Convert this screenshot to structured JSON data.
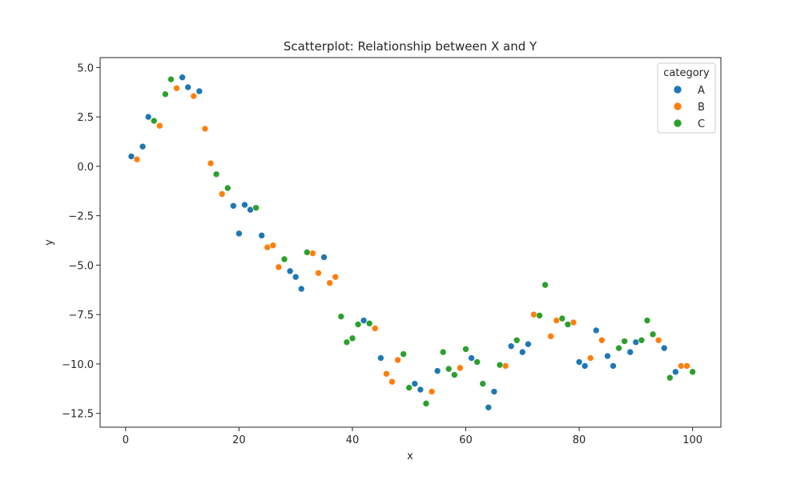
{
  "chart_data": {
    "type": "scatter",
    "title": "Scatterplot: Relationship between X and Y",
    "xlabel": "x",
    "ylabel": "y",
    "xlim": [
      -4.5,
      105
    ],
    "ylim": [
      -13.2,
      5.5
    ],
    "xticks": [
      0,
      20,
      40,
      60,
      80,
      100
    ],
    "xtick_labels": [
      "0",
      "20",
      "40",
      "60",
      "80",
      "100"
    ],
    "yticks": [
      5.0,
      2.5,
      0.0,
      -2.5,
      -5.0,
      -7.5,
      -10.0,
      -12.5
    ],
    "ytick_labels": [
      "5.0",
      "2.5",
      "0.0",
      "−2.5",
      "−5.0",
      "−7.5",
      "−10.0",
      "−12.5"
    ],
    "grid": false,
    "legend": {
      "title": "category",
      "placement": "top-right"
    },
    "series": [
      {
        "name": "A",
        "color": "#1f77b4",
        "points": [
          [
            1,
            0.5
          ],
          [
            3,
            1.0
          ],
          [
            4,
            2.5
          ],
          [
            10,
            4.5
          ],
          [
            11,
            4.0
          ],
          [
            13,
            3.8
          ],
          [
            19,
            -2.0
          ],
          [
            20,
            -3.4
          ],
          [
            21,
            -1.95
          ],
          [
            22,
            -2.2
          ],
          [
            24,
            -3.5
          ],
          [
            29,
            -5.3
          ],
          [
            30,
            -5.6
          ],
          [
            31,
            -6.2
          ],
          [
            35,
            -4.6
          ],
          [
            42,
            -7.8
          ],
          [
            45,
            -9.7
          ],
          [
            51,
            -11.0
          ],
          [
            52,
            -11.3
          ],
          [
            55,
            -10.35
          ],
          [
            61,
            -9.7
          ],
          [
            64,
            -12.2
          ],
          [
            65,
            -11.4
          ],
          [
            68,
            -9.1
          ],
          [
            70,
            -9.4
          ],
          [
            71,
            -9.0
          ],
          [
            80,
            -9.9
          ],
          [
            81,
            -10.1
          ],
          [
            83,
            -8.3
          ],
          [
            85,
            -9.6
          ],
          [
            86,
            -10.1
          ],
          [
            89,
            -9.4
          ],
          [
            90,
            -8.9
          ],
          [
            95,
            -9.2
          ],
          [
            97,
            -10.4
          ]
        ]
      },
      {
        "name": "B",
        "color": "#ff7f0e",
        "points": [
          [
            2,
            0.35
          ],
          [
            6,
            2.05
          ],
          [
            9,
            3.95
          ],
          [
            12,
            3.55
          ],
          [
            14,
            1.9
          ],
          [
            15,
            0.15
          ],
          [
            17,
            -1.4
          ],
          [
            25,
            -4.1
          ],
          [
            26,
            -4.0
          ],
          [
            27,
            -5.1
          ],
          [
            33,
            -4.4
          ],
          [
            34,
            -5.4
          ],
          [
            36,
            -5.9
          ],
          [
            37,
            -5.6
          ],
          [
            44,
            -8.2
          ],
          [
            46,
            -10.5
          ],
          [
            47,
            -10.9
          ],
          [
            48,
            -9.8
          ],
          [
            54,
            -11.4
          ],
          [
            59,
            -10.2
          ],
          [
            67,
            -10.1
          ],
          [
            72,
            -7.5
          ],
          [
            75,
            -8.6
          ],
          [
            76,
            -7.8
          ],
          [
            79,
            -7.9
          ],
          [
            82,
            -9.7
          ],
          [
            84,
            -8.8
          ],
          [
            94,
            -8.8
          ],
          [
            98,
            -10.1
          ],
          [
            99,
            -10.1
          ]
        ]
      },
      {
        "name": "C",
        "color": "#2ca02c",
        "points": [
          [
            5,
            2.3
          ],
          [
            7,
            3.65
          ],
          [
            8,
            4.4
          ],
          [
            16,
            -0.4
          ],
          [
            18,
            -1.1
          ],
          [
            23,
            -2.1
          ],
          [
            28,
            -4.7
          ],
          [
            32,
            -4.35
          ],
          [
            38,
            -7.6
          ],
          [
            39,
            -8.9
          ],
          [
            40,
            -8.7
          ],
          [
            41,
            -8.0
          ],
          [
            43,
            -7.95
          ],
          [
            49,
            -9.5
          ],
          [
            50,
            -11.2
          ],
          [
            53,
            -12.0
          ],
          [
            56,
            -9.4
          ],
          [
            57,
            -10.25
          ],
          [
            58,
            -10.55
          ],
          [
            60,
            -9.25
          ],
          [
            62,
            -9.9
          ],
          [
            63,
            -11.0
          ],
          [
            66,
            -10.05
          ],
          [
            69,
            -8.8
          ],
          [
            73,
            -7.55
          ],
          [
            74,
            -6.0
          ],
          [
            77,
            -7.7
          ],
          [
            78,
            -8.0
          ],
          [
            87,
            -9.2
          ],
          [
            88,
            -8.85
          ],
          [
            91,
            -8.8
          ],
          [
            92,
            -7.8
          ],
          [
            93,
            -8.5
          ],
          [
            96,
            -10.7
          ],
          [
            100,
            -10.4
          ]
        ]
      }
    ]
  }
}
